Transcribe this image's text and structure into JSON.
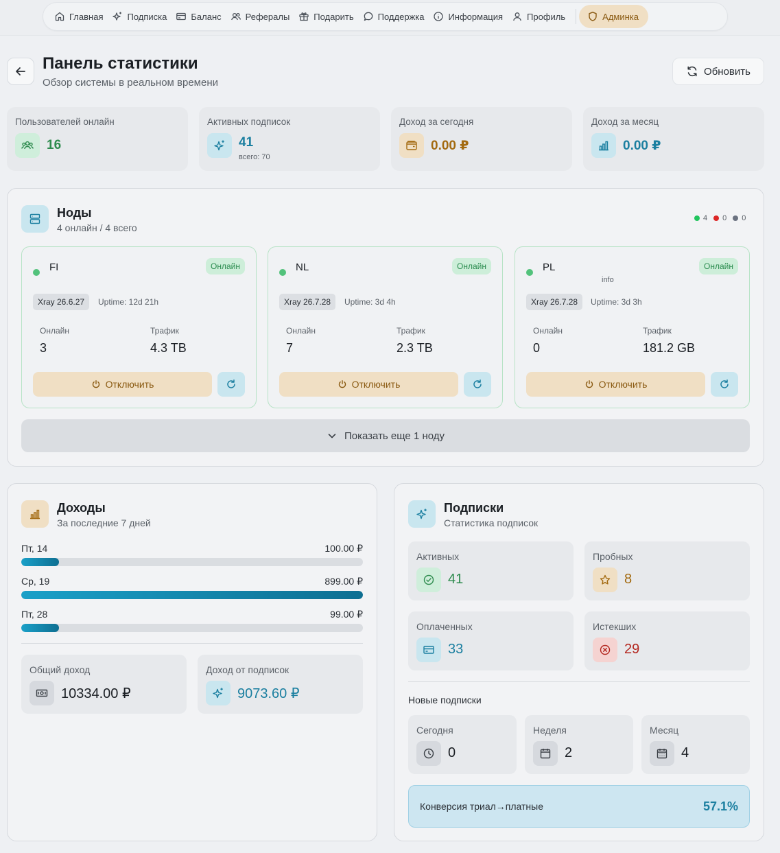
{
  "nav": {
    "items": [
      {
        "label": "Главная",
        "icon": "home-icon"
      },
      {
        "label": "Подписка",
        "icon": "sparkles-icon"
      },
      {
        "label": "Баланс",
        "icon": "wallet-card-icon"
      },
      {
        "label": "Рефералы",
        "icon": "users-icon"
      },
      {
        "label": "Подарить",
        "icon": "gift-icon"
      },
      {
        "label": "Поддержка",
        "icon": "chat-icon"
      },
      {
        "label": "Информация",
        "icon": "info-icon"
      },
      {
        "label": "Профиль",
        "icon": "user-icon"
      }
    ],
    "admin": {
      "label": "Админка",
      "icon": "shield-icon"
    }
  },
  "header": {
    "title": "Панель статистики",
    "subtitle": "Обзор системы в реальном времени",
    "refresh_label": "Обновить"
  },
  "stats": {
    "online": {
      "label": "Пользователей онлайн",
      "value": "16"
    },
    "subs": {
      "label": "Активных подписок",
      "value": "41",
      "sub": "всего: 70"
    },
    "today": {
      "label": "Доход за сегодня",
      "value": "0.00 ₽"
    },
    "month": {
      "label": "Доход за месяц",
      "value": "0.00 ₽"
    }
  },
  "nodes": {
    "title": "Ноды",
    "subtitle": "4 онлайн / 4 всего",
    "legend": {
      "online": "4",
      "offline": "0",
      "unknown": "0"
    },
    "items": [
      {
        "name": "FI",
        "status": "Онлайн",
        "info": "",
        "version": "Xray 26.6.27",
        "uptime": "Uptime: 12d 21h",
        "online_label": "Онлайн",
        "online": "3",
        "traffic_label": "Трафик",
        "traffic": "4.3 TB",
        "disable_label": "Отключить"
      },
      {
        "name": "NL",
        "status": "Онлайн",
        "info": "",
        "version": "Xray 26.7.28",
        "uptime": "Uptime: 3d 4h",
        "online_label": "Онлайн",
        "online": "7",
        "traffic_label": "Трафик",
        "traffic": "2.3 TB",
        "disable_label": "Отключить"
      },
      {
        "name": "PL",
        "status": "Онлайн",
        "info": "info",
        "version": "Xray 26.7.28",
        "uptime": "Uptime: 3d 3h",
        "online_label": "Онлайн",
        "online": "0",
        "traffic_label": "Трафик",
        "traffic": "181.2 GB",
        "disable_label": "Отключить"
      }
    ],
    "show_more": "Показать еще 1 ноду"
  },
  "income": {
    "title": "Доходы",
    "subtitle": "За последние 7 дней",
    "bars": [
      {
        "label": "Пт, 14",
        "value": "100.00 ₽",
        "fraction": 0.111
      },
      {
        "label": "Ср, 19",
        "value": "899.00 ₽",
        "fraction": 1.0
      },
      {
        "label": "Пт, 28",
        "value": "99.00 ₽",
        "fraction": 0.11
      }
    ],
    "total": {
      "label": "Общий доход",
      "value": "10334.00 ₽"
    },
    "from_subs": {
      "label": "Доход от подписок",
      "value": "9073.60 ₽"
    }
  },
  "subscriptions": {
    "title": "Подписки",
    "subtitle": "Статистика подписок",
    "active": {
      "label": "Активных",
      "value": "41"
    },
    "trial": {
      "label": "Пробных",
      "value": "8"
    },
    "paid": {
      "label": "Оплаченных",
      "value": "33"
    },
    "expired": {
      "label": "Истекших",
      "value": "29"
    },
    "new_title": "Новые подписки",
    "today": {
      "label": "Сегодня",
      "value": "0"
    },
    "week": {
      "label": "Неделя",
      "value": "2"
    },
    "month": {
      "label": "Месяц",
      "value": "4"
    },
    "conversion": {
      "label": "Конверсия триал→платные",
      "value": "57.1%"
    }
  },
  "colors": {
    "accent": "#1b7fa0",
    "green": "#2e8b4e",
    "amber": "#a36a10",
    "red": "#b3261e",
    "online_dot": "#22c55e",
    "offline_dot": "#dc2626",
    "unknown_dot": "#6b7280"
  }
}
